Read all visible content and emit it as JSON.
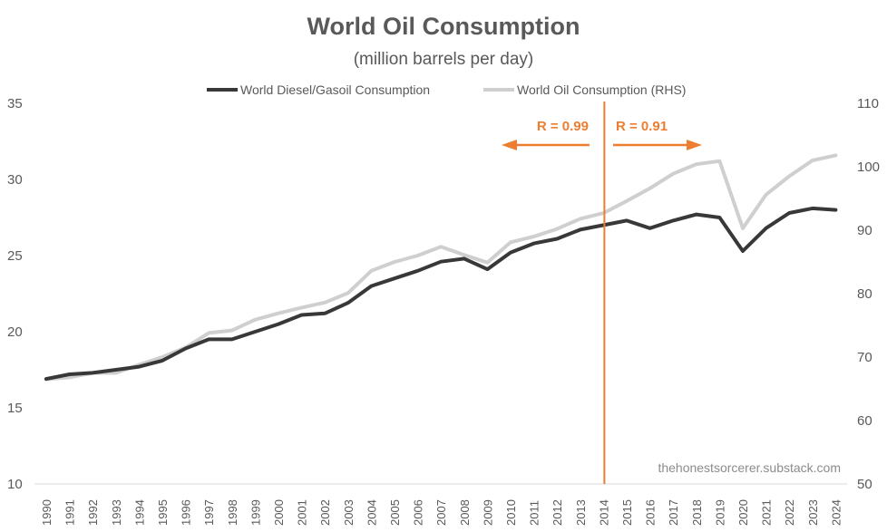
{
  "chart_data": {
    "type": "line",
    "title": "World Oil Consumption",
    "subtitle": "(million barrels per day)",
    "xlabel": "",
    "ylabel_left": "",
    "ylabel_right": "",
    "x": [
      1990,
      1991,
      1992,
      1993,
      1994,
      1995,
      1996,
      1997,
      1998,
      1999,
      2000,
      2001,
      2002,
      2003,
      2004,
      2005,
      2006,
      2007,
      2008,
      2009,
      2010,
      2011,
      2012,
      2013,
      2014,
      2015,
      2016,
      2017,
      2018,
      2019,
      2020,
      2021,
      2022,
      2023,
      2024
    ],
    "x_tick_labels": [
      "1990",
      "1991",
      "1992",
      "1993",
      "1994",
      "1995",
      "1996",
      "1997",
      "1998",
      "1999",
      "2000",
      "2001",
      "2002",
      "2003",
      "2004",
      "2005",
      "2006",
      "2007",
      "2008",
      "2009",
      "2010",
      "2011",
      "2012",
      "2013",
      "2014",
      "2015",
      "2016",
      "2017",
      "2018",
      "2019",
      "2020",
      "2021",
      "2022",
      "2023",
      "2024"
    ],
    "y_left": {
      "range": [
        10,
        35
      ],
      "ticks": [
        "10",
        "15",
        "20",
        "25",
        "30",
        "35"
      ]
    },
    "y_right": {
      "range": [
        50,
        110
      ],
      "ticks": [
        "50",
        "60",
        "70",
        "80",
        "90",
        "100",
        "110"
      ]
    },
    "legend_position": "top-center",
    "grid": false,
    "series": [
      {
        "name": "World Diesel/Gasoil Consumption",
        "axis": "left",
        "color": "#383838",
        "values": [
          16.9,
          17.2,
          17.3,
          17.5,
          17.7,
          18.1,
          18.9,
          19.5,
          19.5,
          20.0,
          20.5,
          21.1,
          21.2,
          21.9,
          23.0,
          23.5,
          24.0,
          24.6,
          24.8,
          24.1,
          25.2,
          25.8,
          26.1,
          26.7,
          27.0,
          27.3,
          26.8,
          27.3,
          27.7,
          27.5,
          25.3,
          26.8,
          27.8,
          28.1,
          28.0
        ]
      },
      {
        "name": "World Oil Consumption (RHS)",
        "axis": "right",
        "color": "#cfcfcf",
        "values": [
          66.5,
          66.8,
          67.5,
          67.5,
          68.8,
          70.0,
          71.5,
          73.8,
          74.2,
          75.9,
          76.9,
          77.8,
          78.6,
          80.1,
          83.6,
          85.0,
          86.0,
          87.4,
          86.1,
          84.9,
          88.1,
          89.0,
          90.2,
          91.8,
          92.7,
          94.6,
          96.6,
          98.9,
          100.4,
          100.9,
          90.3,
          95.6,
          98.5,
          101.0,
          101.8
        ]
      }
    ],
    "annotations": {
      "divider_year": 2014,
      "left_label": "R = 0.99",
      "right_label": "R = 0.91",
      "color": "#ed7d31"
    },
    "watermark": "thehonestsorcerer.substack.com"
  }
}
